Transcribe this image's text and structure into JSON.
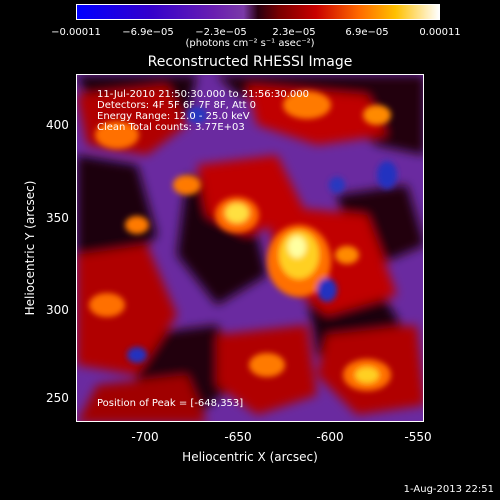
{
  "colorbar": {
    "ticks": [
      "−0.00011",
      "−6.9e−05",
      "−2.3e−05",
      "2.3e−05",
      "6.9e−05",
      "0.00011"
    ],
    "units": "(photons cm⁻² s⁻¹ asec⁻²)"
  },
  "image": {
    "title": "Reconstructed RHESSI Image",
    "info_lines": [
      "11-Jul-2010 21:50:30.000 to 21:56:30.000",
      "Detectors: 4F 5F 6F 7F 8F, Att 0",
      "Energy Range: 12.0 - 25.0 keV",
      "Clean    Total counts: 3.77E+03"
    ],
    "peak_position": "Position of Peak = [-648,353]",
    "x_axis": {
      "label": "Heliocentric X (arcsec)",
      "ticks": [
        "-700",
        "-650",
        "-600",
        "-550"
      ]
    },
    "y_axis": {
      "label": "Heliocentric Y (arcsec)",
      "ticks": [
        "400",
        "350",
        "300",
        "250"
      ]
    },
    "timestamp": "1-Aug-2013 22:51"
  }
}
